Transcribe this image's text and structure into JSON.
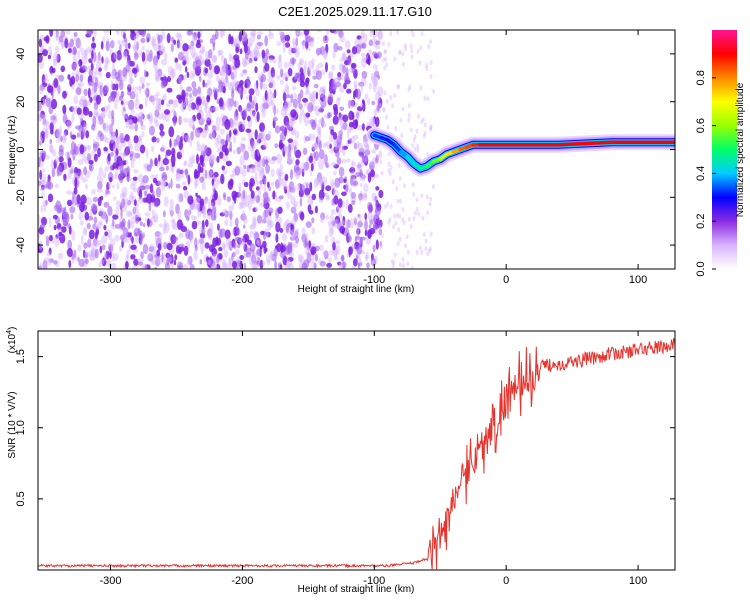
{
  "chart_data": [
    {
      "type": "heatmap",
      "title": "C2E1.2025.029.11.17.G10",
      "xlabel": "Height of straight line (km)",
      "ylabel": "Frequency (Hz)",
      "xlim": [
        -355,
        128
      ],
      "ylim": [
        -50,
        50
      ],
      "xticks": [
        -300,
        -200,
        -100,
        0,
        100
      ],
      "yticks": [
        -40,
        -20,
        0,
        20,
        40
      ],
      "colorbar": {
        "label": "Normalized spectral amplitude",
        "range": [
          0.0,
          1.0
        ],
        "ticks": [
          "0.0",
          "0.2",
          "0.4",
          "0.6",
          "0.8"
        ],
        "colormap": [
          "#ffffff",
          "#d9b3ff",
          "#8a2be2",
          "#0000ff",
          "#00ccff",
          "#00ff66",
          "#99ff00",
          "#ffff00",
          "#ff8800",
          "#ff0000",
          "#ff1493"
        ]
      },
      "noise_region": {
        "x_range": [
          -355,
          -95
        ],
        "freq_range": [
          -50,
          50
        ],
        "amplitude": 0.1
      },
      "ridge": {
        "x": [
          -100,
          -95,
          -90,
          -85,
          -80,
          -75,
          -70,
          -65,
          -60,
          -55,
          -50,
          -45,
          -40,
          -35,
          -30,
          -25,
          -20,
          -10,
          0,
          10,
          20,
          40,
          60,
          80,
          100,
          128
        ],
        "freq": [
          6,
          5,
          4,
          2,
          -1,
          -3,
          -6,
          -8,
          -7,
          -5,
          -4,
          -2,
          -1,
          0,
          1,
          2,
          2,
          2,
          2,
          2,
          2,
          2,
          2.5,
          3,
          3,
          3
        ],
        "amplitude": [
          0.35,
          0.3,
          0.25,
          0.3,
          0.35,
          0.4,
          0.45,
          0.45,
          0.5,
          0.55,
          0.6,
          0.7,
          0.75,
          0.8,
          0.85,
          0.85,
          0.9,
          0.9,
          0.9,
          0.9,
          0.9,
          0.9,
          0.9,
          0.9,
          0.9,
          0.9
        ]
      }
    },
    {
      "type": "line",
      "xlabel": "Height of straight line (km)",
      "ylabel": "SNR (10 * V/V)",
      "yscale_label": "(x10",
      "yscale_exp": "4",
      "xlim": [
        -355,
        128
      ],
      "ylim": [
        0,
        1.68
      ],
      "xticks": [
        -300,
        -200,
        -100,
        0,
        100
      ],
      "yticks": [
        0.5,
        1.0,
        1.5
      ],
      "ytick_labels": [
        "0.5",
        "1.0",
        "1.5"
      ],
      "color": "#e8322c",
      "series": [
        {
          "x": [
            -355,
            -300,
            -250,
            -200,
            -150,
            -100,
            -90,
            -80,
            -70,
            -60,
            -55,
            -50,
            -45,
            -40,
            -35,
            -30,
            -25,
            -20,
            -15,
            -10,
            -5,
            0,
            5,
            10,
            15,
            20,
            25,
            30,
            40,
            50,
            60,
            70,
            80,
            90,
            100,
            110,
            120,
            128
          ],
          "y": [
            0.03,
            0.03,
            0.03,
            0.03,
            0.03,
            0.03,
            0.03,
            0.04,
            0.05,
            0.08,
            0.15,
            0.25,
            0.35,
            0.5,
            0.6,
            0.72,
            0.8,
            0.85,
            0.92,
            1.0,
            1.08,
            1.2,
            1.25,
            1.28,
            1.32,
            1.38,
            1.42,
            1.44,
            1.45,
            1.46,
            1.48,
            1.5,
            1.52,
            1.53,
            1.55,
            1.56,
            1.57,
            1.58
          ]
        }
      ]
    }
  ]
}
